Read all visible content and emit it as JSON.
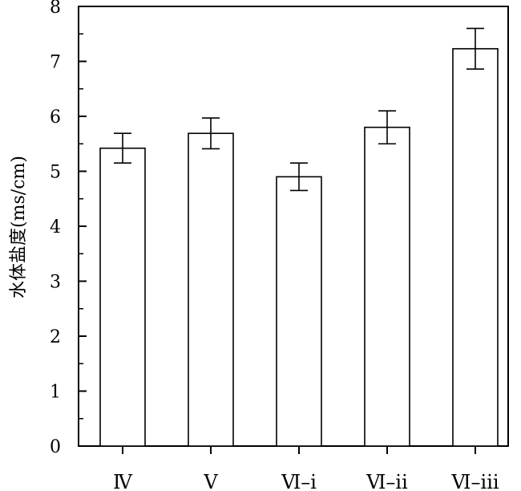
{
  "chart_data": {
    "type": "bar",
    "ylabel": "水体盐度(ms/cm)",
    "xlabel": "",
    "categories": [
      "Ⅳ",
      "Ⅴ",
      "Ⅵ–i",
      "Ⅵ–ii",
      "Ⅵ–iii"
    ],
    "values": [
      5.42,
      5.69,
      4.9,
      5.8,
      7.23
    ],
    "errors": [
      0.27,
      0.28,
      0.25,
      0.3,
      0.37
    ],
    "ylim": [
      0,
      8
    ],
    "yticks": [
      "0",
      "1",
      "2",
      "3",
      "4",
      "5",
      "6",
      "7",
      "8"
    ],
    "grid": false
  }
}
